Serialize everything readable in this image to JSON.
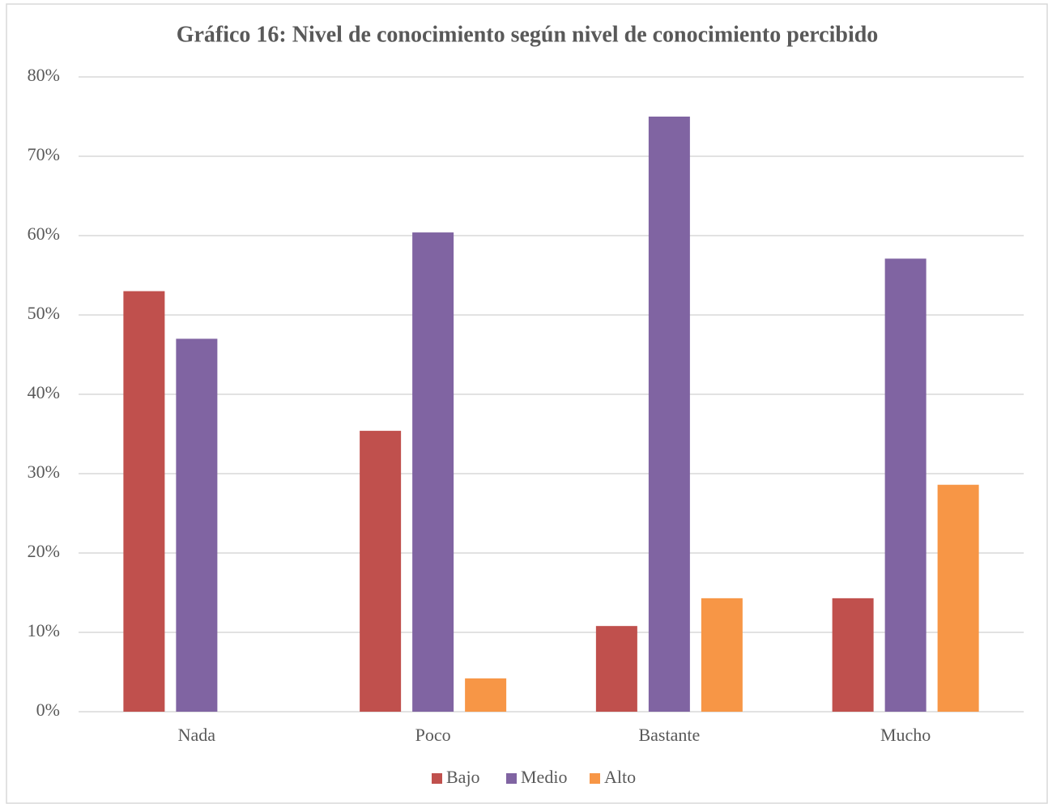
{
  "chart_data": {
    "type": "bar",
    "title": "Gráfico 16: Nivel de conocimiento según nivel de conocimiento percibido",
    "categories": [
      "Nada",
      "Poco",
      "Bastante",
      "Mucho"
    ],
    "series": [
      {
        "name": "Bajo",
        "color": "#c0504d",
        "values": [
          53,
          35.4,
          10.8,
          14.3
        ]
      },
      {
        "name": "Medio",
        "color": "#8064a2",
        "values": [
          47,
          60.4,
          75,
          57.1
        ]
      },
      {
        "name": "Alto",
        "color": "#f79646",
        "values": [
          0,
          4.2,
          14.3,
          28.6
        ]
      }
    ],
    "ylim": [
      0,
      80
    ],
    "yticks": [
      {
        "value": 0,
        "label": "0%"
      },
      {
        "value": 10,
        "label": "10%"
      },
      {
        "value": 20,
        "label": "20%"
      },
      {
        "value": 30,
        "label": "30%"
      },
      {
        "value": 40,
        "label": "40%"
      },
      {
        "value": 50,
        "label": "50%"
      },
      {
        "value": 60,
        "label": "60%"
      },
      {
        "value": 70,
        "label": "70%"
      },
      {
        "value": 80,
        "label": "80%"
      }
    ],
    "grid": true,
    "legend": "bottom"
  }
}
